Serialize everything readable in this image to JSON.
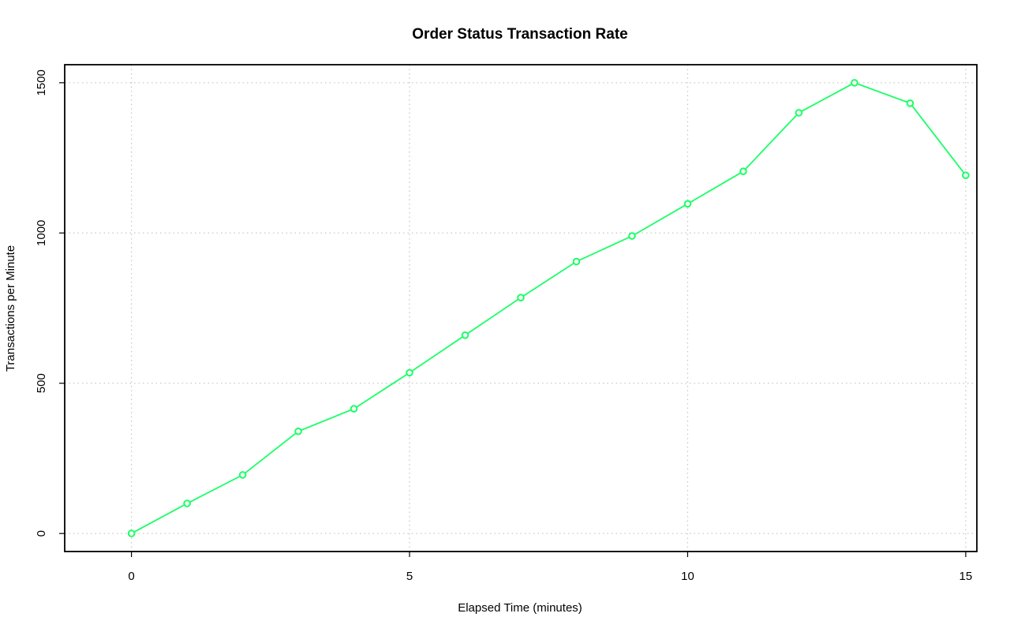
{
  "chart_data": {
    "type": "line",
    "title": "Order Status Transaction Rate",
    "xlabel": "Elapsed Time (minutes)",
    "ylabel": "Transactions per Minute",
    "xlim": [
      -1.2,
      15.2
    ],
    "ylim": [
      -60,
      1560
    ],
    "x_ticks": [
      0,
      5,
      10,
      15
    ],
    "y_ticks": [
      0,
      500,
      1000,
      1500
    ],
    "grid": true,
    "color": "#1aff66",
    "series": [
      {
        "x": [
          0,
          1,
          2,
          3,
          4,
          5,
          6,
          7,
          8,
          9,
          10,
          11,
          12,
          13,
          14,
          15
        ],
        "values": [
          0,
          100,
          195,
          340,
          415,
          535,
          660,
          785,
          905,
          990,
          1097,
          1205,
          1400,
          1500,
          1432,
          1192
        ]
      }
    ]
  }
}
